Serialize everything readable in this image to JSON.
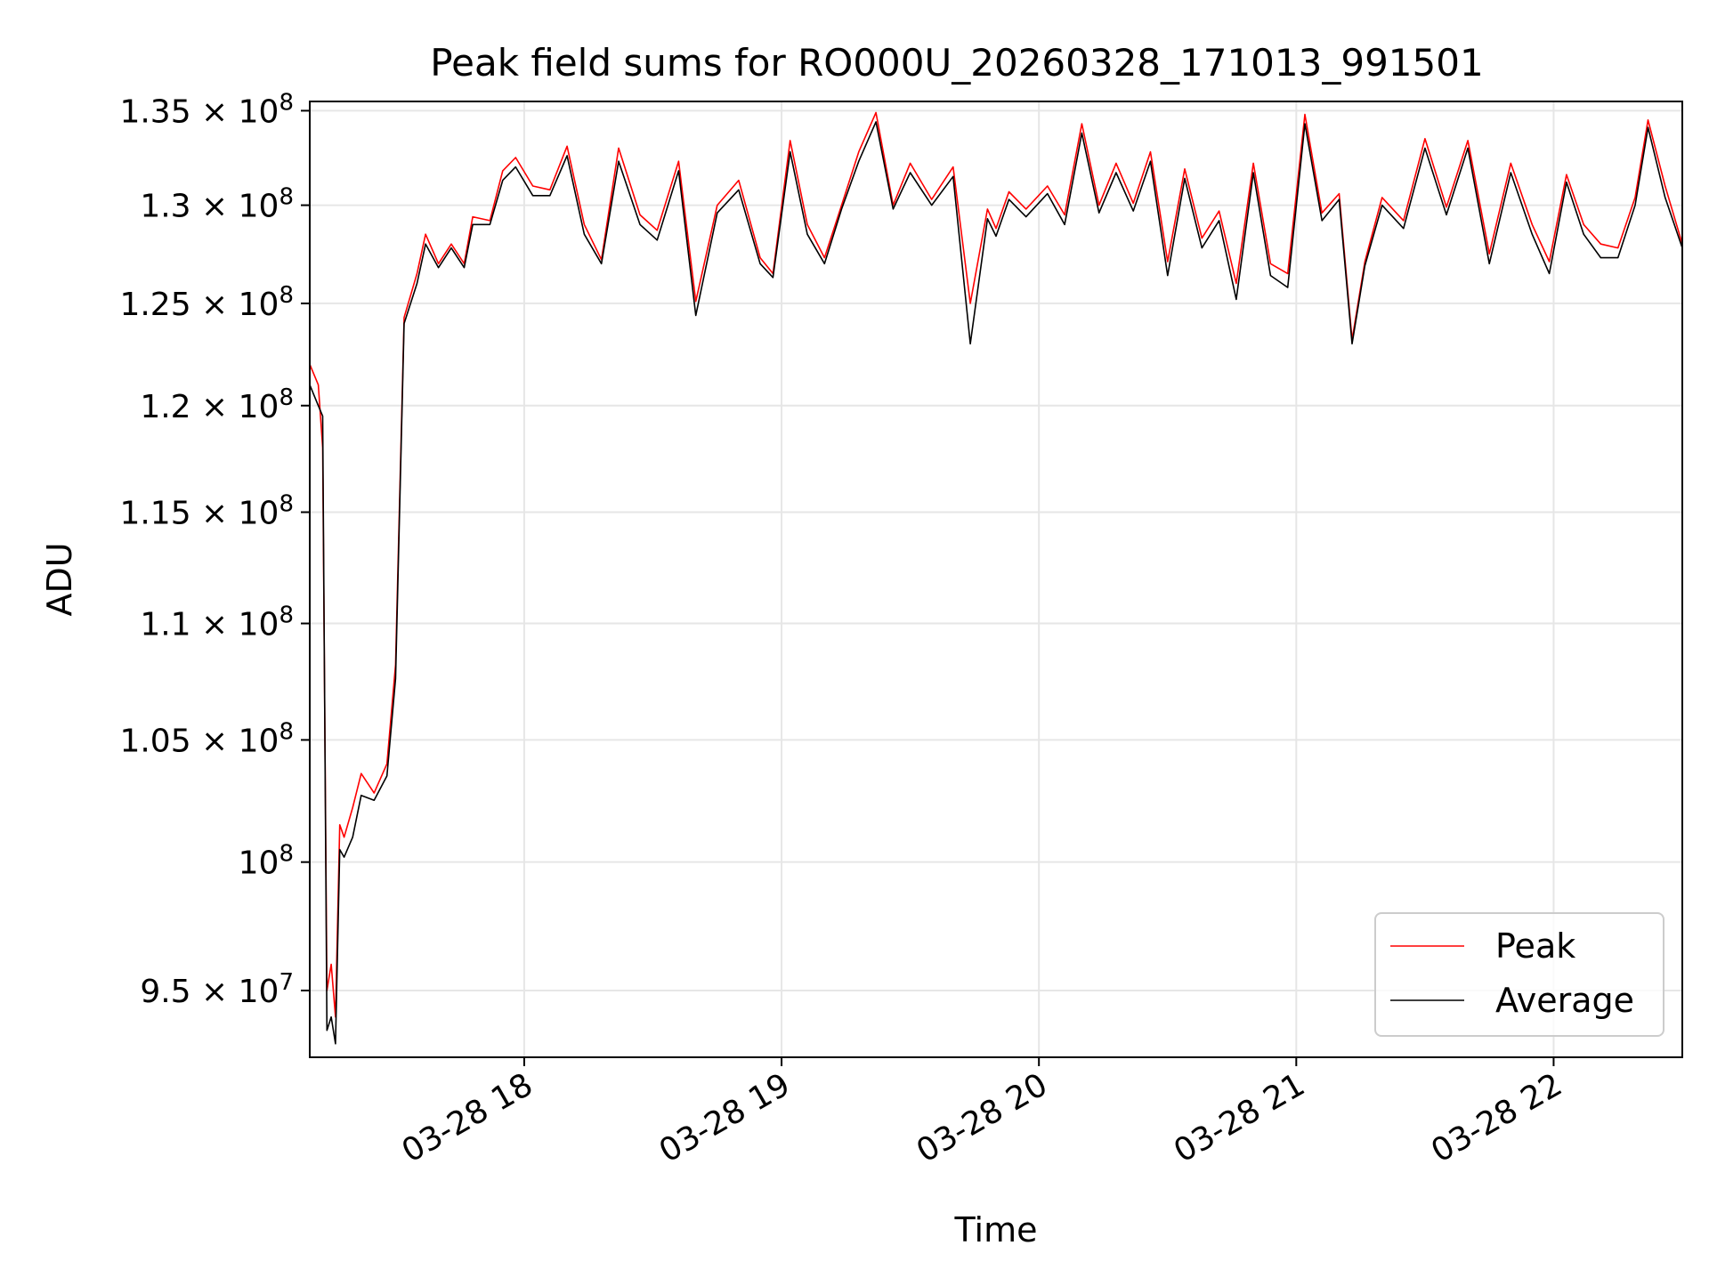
{
  "chart_data": {
    "type": "line",
    "title": "Peak field sums for RO000U_20260328_171013_991501",
    "xlabel": "Time",
    "ylabel": "ADU",
    "yscale": "log",
    "ylim": [
      92500000,
      135500000
    ],
    "xlim": [
      "2026-03-28 17:10",
      "2026-03-28 22:30"
    ],
    "grid": true,
    "legend_position": "lower right",
    "xticks": [
      {
        "t": "2026-03-28 18:00",
        "label": "03-28 18"
      },
      {
        "t": "2026-03-28 19:00",
        "label": "03-28 19"
      },
      {
        "t": "2026-03-28 20:00",
        "label": "03-28 20"
      },
      {
        "t": "2026-03-28 21:00",
        "label": "03-28 21"
      },
      {
        "t": "2026-03-28 22:00",
        "label": "03-28 22"
      }
    ],
    "yticks": [
      {
        "value": 95000000,
        "mant": "9.5",
        "exp": "7"
      },
      {
        "value": 100000000,
        "mant": "",
        "exp": "8"
      },
      {
        "value": 105000000,
        "mant": "1.05",
        "exp": "8"
      },
      {
        "value": 110000000,
        "mant": "1.1",
        "exp": "8"
      },
      {
        "value": 115000000,
        "mant": "1.15",
        "exp": "8"
      },
      {
        "value": 120000000,
        "mant": "1.2",
        "exp": "8"
      },
      {
        "value": 125000000,
        "mant": "1.25",
        "exp": "8"
      },
      {
        "value": 130000000,
        "mant": "1.3",
        "exp": "8"
      },
      {
        "value": 135000000,
        "mant": "1.35",
        "exp": "8"
      }
    ],
    "x": [
      "2026-03-28 17:10",
      "2026-03-28 17:12",
      "2026-03-28 17:13",
      "2026-03-28 17:14",
      "2026-03-28 17:15",
      "2026-03-28 17:16",
      "2026-03-28 17:17",
      "2026-03-28 17:18",
      "2026-03-28 17:20",
      "2026-03-28 17:22",
      "2026-03-28 17:25",
      "2026-03-28 17:28",
      "2026-03-28 17:30",
      "2026-03-28 17:32",
      "2026-03-28 17:35",
      "2026-03-28 17:37",
      "2026-03-28 17:40",
      "2026-03-28 17:43",
      "2026-03-28 17:46",
      "2026-03-28 17:48",
      "2026-03-28 17:52",
      "2026-03-28 17:55",
      "2026-03-28 17:58",
      "2026-03-28 18:02",
      "2026-03-28 18:06",
      "2026-03-28 18:10",
      "2026-03-28 18:14",
      "2026-03-28 18:18",
      "2026-03-28 18:22",
      "2026-03-28 18:27",
      "2026-03-28 18:31",
      "2026-03-28 18:36",
      "2026-03-28 18:40",
      "2026-03-28 18:45",
      "2026-03-28 18:50",
      "2026-03-28 18:55",
      "2026-03-28 18:58",
      "2026-03-28 19:02",
      "2026-03-28 19:06",
      "2026-03-28 19:10",
      "2026-03-28 19:14",
      "2026-03-28 19:18",
      "2026-03-28 19:22",
      "2026-03-28 19:26",
      "2026-03-28 19:30",
      "2026-03-28 19:35",
      "2026-03-28 19:40",
      "2026-03-28 19:44",
      "2026-03-28 19:48",
      "2026-03-28 19:50",
      "2026-03-28 19:53",
      "2026-03-28 19:57",
      "2026-03-28 20:02",
      "2026-03-28 20:06",
      "2026-03-28 20:10",
      "2026-03-28 20:14",
      "2026-03-28 20:18",
      "2026-03-28 20:22",
      "2026-03-28 20:26",
      "2026-03-28 20:30",
      "2026-03-28 20:34",
      "2026-03-28 20:38",
      "2026-03-28 20:42",
      "2026-03-28 20:46",
      "2026-03-28 20:50",
      "2026-03-28 20:54",
      "2026-03-28 20:58",
      "2026-03-28 21:02",
      "2026-03-28 21:06",
      "2026-03-28 21:10",
      "2026-03-28 21:13",
      "2026-03-28 21:16",
      "2026-03-28 21:20",
      "2026-03-28 21:25",
      "2026-03-28 21:30",
      "2026-03-28 21:35",
      "2026-03-28 21:40",
      "2026-03-28 21:45",
      "2026-03-28 21:50",
      "2026-03-28 21:55",
      "2026-03-28 21:59",
      "2026-03-28 22:03",
      "2026-03-28 22:07",
      "2026-03-28 22:11",
      "2026-03-28 22:15",
      "2026-03-28 22:19",
      "2026-03-28 22:22",
      "2026-03-28 22:26",
      "2026-03-28 22:30"
    ],
    "series": [
      {
        "name": "Peak",
        "color": "#ff0000",
        "values": [
          122000000,
          121000000,
          118000000,
          95000000,
          96000000,
          94000000,
          101500000,
          101000000,
          102200000,
          103600000,
          102800000,
          104000000,
          108200000,
          124300000,
          126500000,
          128500000,
          127000000,
          128000000,
          127000000,
          129400000,
          129200000,
          131800000,
          132500000,
          131000000,
          130800000,
          133100000,
          129000000,
          127200000,
          133000000,
          129500000,
          128700000,
          132300000,
          125100000,
          130000000,
          131300000,
          127300000,
          126500000,
          133400000,
          129000000,
          127300000,
          130000000,
          132800000,
          134900000,
          130000000,
          132200000,
          130300000,
          132000000,
          125000000,
          129800000,
          128800000,
          130700000,
          129800000,
          131000000,
          129500000,
          134300000,
          130000000,
          132200000,
          130100000,
          132800000,
          127100000,
          131900000,
          128300000,
          129700000,
          126000000,
          132200000,
          127000000,
          126500000,
          134800000,
          129600000,
          130600000,
          123200000,
          127100000,
          130400000,
          129200000,
          133500000,
          129900000,
          133400000,
          127500000,
          132200000,
          129000000,
          127100000,
          131600000,
          129000000,
          128000000,
          127800000,
          130400000,
          134500000,
          131000000,
          128000000
        ]
      },
      {
        "name": "Average",
        "color": "#000000",
        "values": [
          121000000,
          120000000,
          119500000,
          93500000,
          94000000,
          93000000,
          100500000,
          100200000,
          101000000,
          102700000,
          102500000,
          103500000,
          107600000,
          124000000,
          126000000,
          128000000,
          126800000,
          127800000,
          126800000,
          129000000,
          129000000,
          131300000,
          132000000,
          130500000,
          130500000,
          132600000,
          128500000,
          127000000,
          132300000,
          129000000,
          128200000,
          131800000,
          124400000,
          129600000,
          130800000,
          127000000,
          126300000,
          132800000,
          128500000,
          127000000,
          129800000,
          132300000,
          134400000,
          129800000,
          131700000,
          130000000,
          131500000,
          123000000,
          129300000,
          128400000,
          130300000,
          129400000,
          130600000,
          129000000,
          133800000,
          129600000,
          131700000,
          129700000,
          132300000,
          126400000,
          131400000,
          127800000,
          129200000,
          125200000,
          131700000,
          126400000,
          125800000,
          134300000,
          129200000,
          130300000,
          123000000,
          126900000,
          130000000,
          128800000,
          133000000,
          129500000,
          133000000,
          127000000,
          131700000,
          128500000,
          126500000,
          131200000,
          128500000,
          127300000,
          127300000,
          130000000,
          134100000,
          130400000,
          127800000
        ]
      }
    ]
  }
}
